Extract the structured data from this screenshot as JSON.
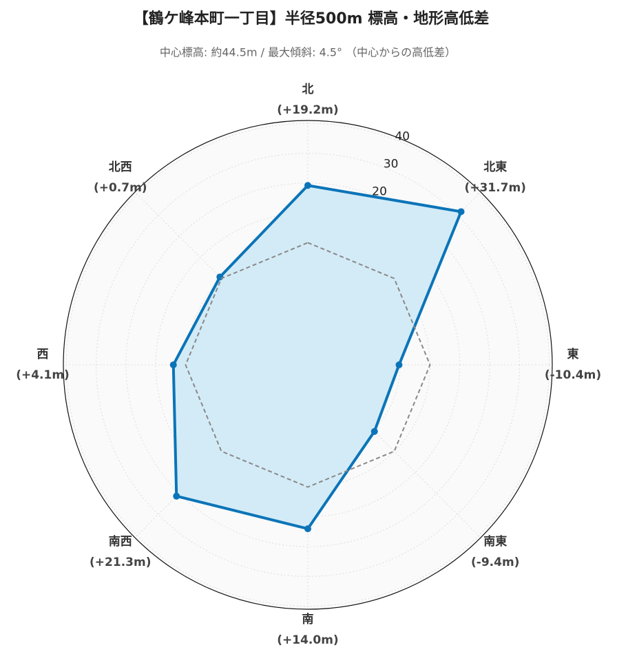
{
  "chart_data": {
    "type": "radar",
    "title": "【鶴ケ峰本町一丁目】半径500m 標高・地形高低差",
    "subtitle": "中心標高: 約44.5m / 最大傾斜: 4.5° （中心からの高低差）",
    "categories": [
      "北",
      "北東",
      "東",
      "南東",
      "南",
      "南西",
      "西",
      "北西"
    ],
    "series": [
      {
        "color": "#0b74b8",
        "fill": "#d3ebf7",
        "values": [
          19.2,
          31.7,
          -10.4,
          -9.4,
          14.0,
          21.3,
          4.1,
          0.7
        ],
        "value_labels": [
          "(+19.2m)",
          "(+31.7m)",
          "(-10.4m)",
          "(-9.4m)",
          "(+14.0m)",
          "(+21.3m)",
          "(+4.1m)",
          "(+0.7m)"
        ]
      },
      {
        "color": "#888888",
        "dashed": true,
        "values": [
          0,
          0,
          0,
          0,
          0,
          0,
          0,
          0
        ]
      }
    ],
    "ylim": [
      -41,
      41
    ],
    "yticks": [
      -40,
      -30,
      -20,
      -10,
      0,
      10,
      20,
      30,
      40
    ],
    "grid": true
  }
}
